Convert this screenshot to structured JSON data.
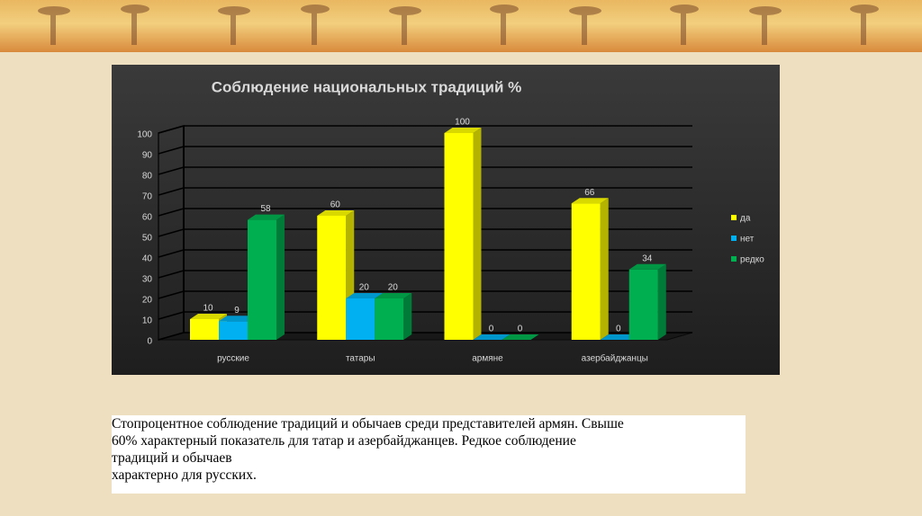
{
  "chart_data": {
    "type": "bar",
    "title": "Соблюдение национальных традиций %",
    "categories": [
      "русские",
      "татары",
      "армяне",
      "азербайджанцы"
    ],
    "series": [
      {
        "name": "да",
        "color": "#ffff00",
        "values": [
          10,
          60,
          100,
          66
        ]
      },
      {
        "name": "нет",
        "color": "#00b0f0",
        "values": [
          9,
          20,
          0,
          0
        ]
      },
      {
        "name": "редко",
        "color": "#00b050",
        "values": [
          58,
          20,
          0,
          34
        ]
      }
    ],
    "ylim": [
      0,
      100
    ],
    "yticks": [
      0,
      10,
      20,
      30,
      40,
      50,
      60,
      70,
      80,
      90,
      100
    ],
    "grid": true,
    "legend": "right"
  },
  "note": {
    "lines": [
      "Стопроцентное соблюдение традиций и обычаев среди представителей армян. Свыше",
      "60% характерный показатель для татар и азербайджанцев. Редкое соблюдение",
      "традиций и обычаев",
      "характерно для русских."
    ]
  }
}
